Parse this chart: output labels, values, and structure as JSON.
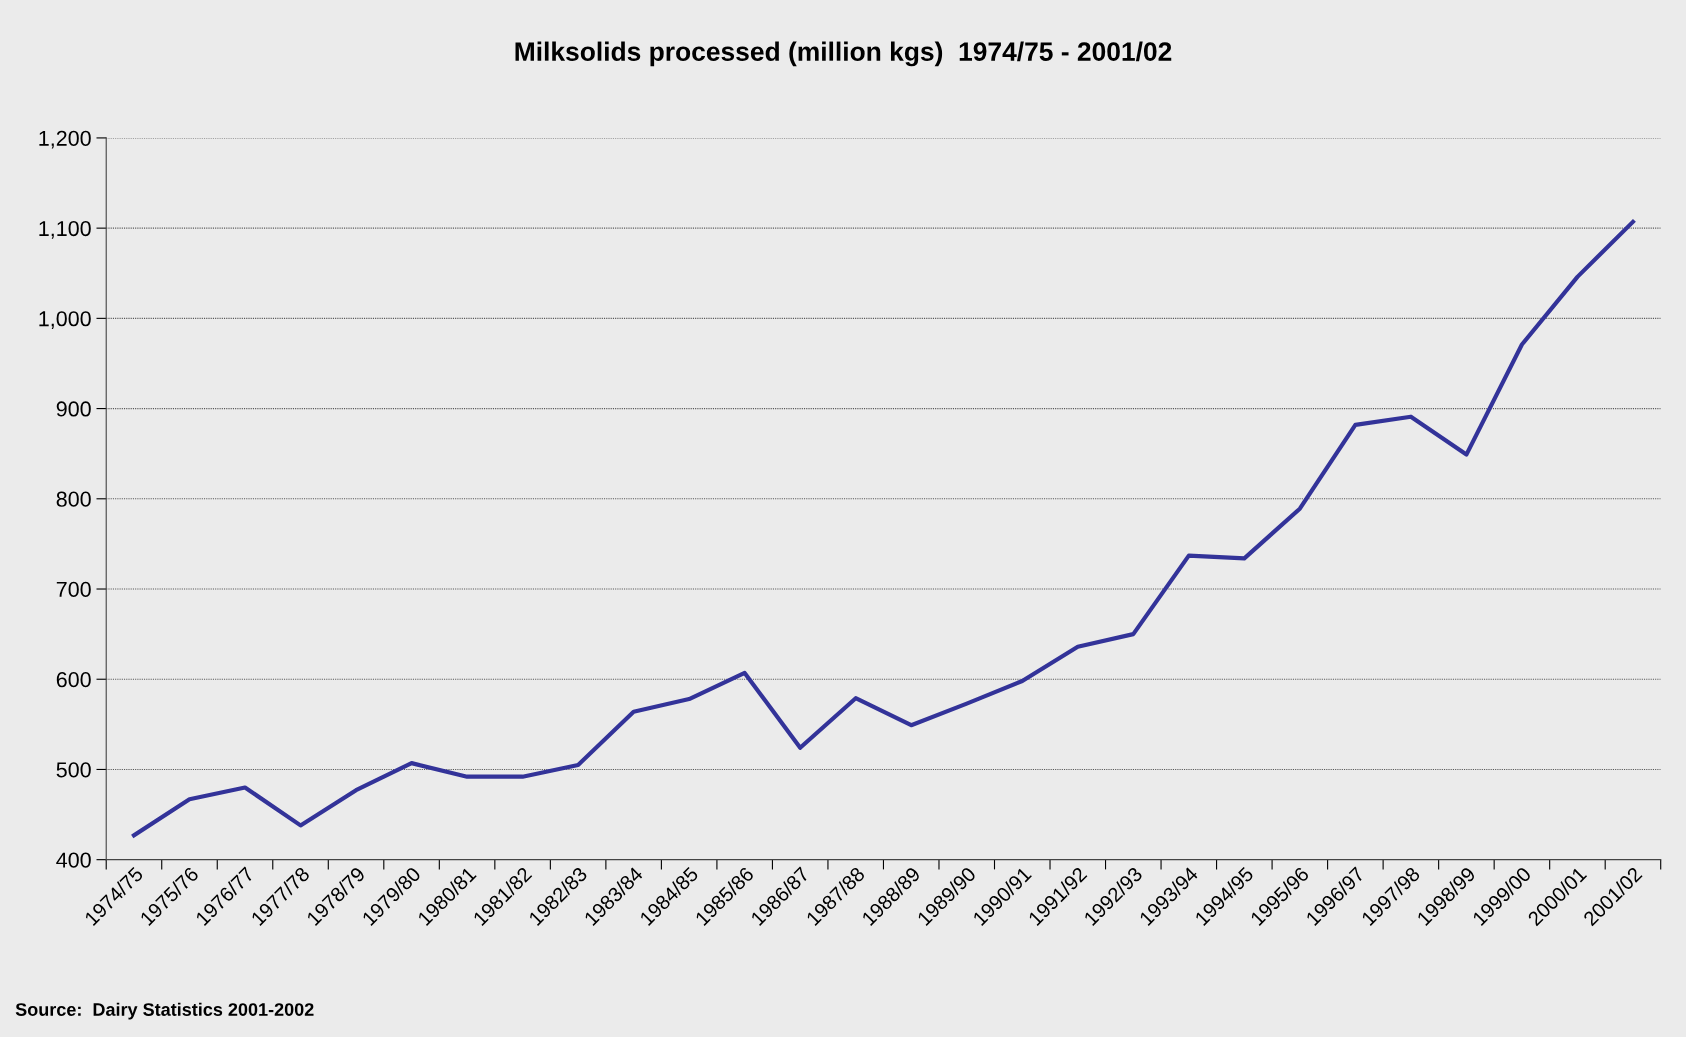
{
  "chart_data": {
    "type": "line",
    "title": "Milksolids processed (million kgs)  1974/75 - 2001/02",
    "categories": [
      "1974/75",
      "1975/76",
      "1976/77",
      "1977/78",
      "1978/79",
      "1979/80",
      "1980/81",
      "1981/82",
      "1982/83",
      "1983/84",
      "1984/85",
      "1985/86",
      "1986/87",
      "1987/88",
      "1988/89",
      "1989/90",
      "1990/91",
      "1991/92",
      "1992/93",
      "1993/94",
      "1994/95",
      "1995/96",
      "1996/97",
      "1997/98",
      "1998/99",
      "1999/00",
      "2000/01",
      "2001/02"
    ],
    "series": [
      {
        "color": "#333399",
        "values": [
          427,
          467,
          480,
          438,
          477,
          507,
          492,
          492,
          505,
          564,
          578,
          607,
          524,
          579,
          549,
          573,
          598,
          636,
          650,
          737,
          734,
          789,
          882,
          891,
          849,
          971,
          1046,
          1107
        ]
      }
    ],
    "ylim": [
      400,
      1200
    ],
    "yticks": [
      400,
      500,
      600,
      700,
      800,
      900,
      {
        "value": 1000,
        "label": "1,000"
      },
      {
        "value": 1100,
        "label": "1,100"
      },
      {
        "value": 1200,
        "label": "1,200"
      }
    ],
    "grid": "y",
    "marker": "none",
    "line_style": "solid",
    "annotations": [
      "Source:  Dairy Statistics 2001-2002"
    ]
  }
}
